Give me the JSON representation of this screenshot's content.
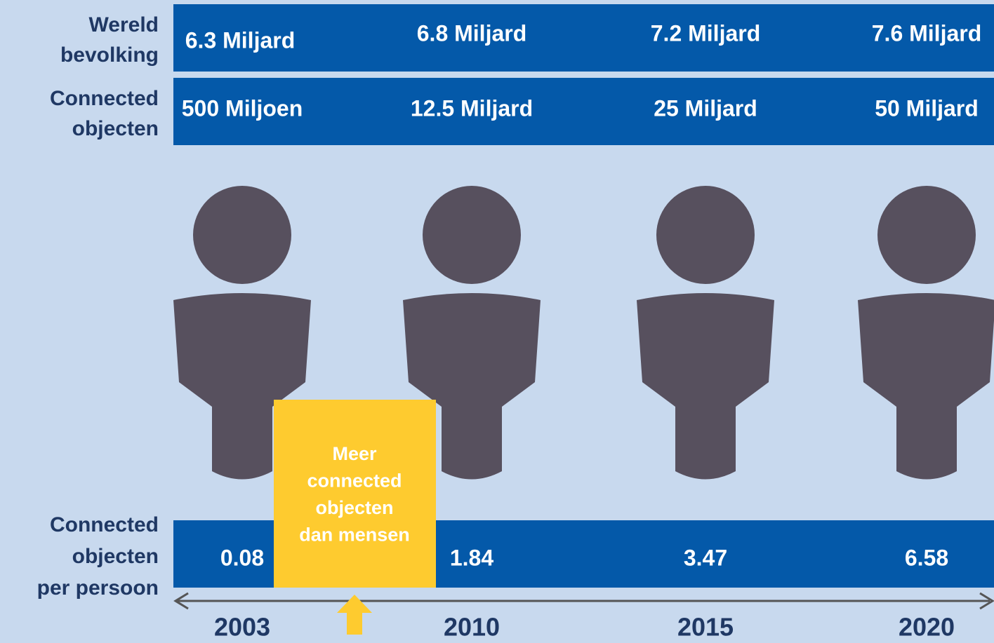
{
  "rows": [
    {
      "label": [
        "Wereld",
        "bevolking"
      ],
      "values": [
        "6.3 Miljard",
        "6.8 Miljard",
        "7.2 Miljard",
        "7.6 Miljard"
      ]
    },
    {
      "label": [
        "Connected",
        "objecten"
      ],
      "values": [
        "500 Miljoen",
        "12.5 Miljard",
        "25 Miljard",
        "50 Miljard"
      ]
    },
    {
      "label": [
        "Connected",
        "objecten",
        "per persoon"
      ],
      "values": [
        "0.08",
        "1.84",
        "3.47",
        "6.58"
      ]
    }
  ],
  "years": [
    "2003",
    "2010",
    "2015",
    "2020"
  ],
  "callout": [
    "Meer",
    "connected",
    "objecten",
    "dan mensen"
  ]
}
